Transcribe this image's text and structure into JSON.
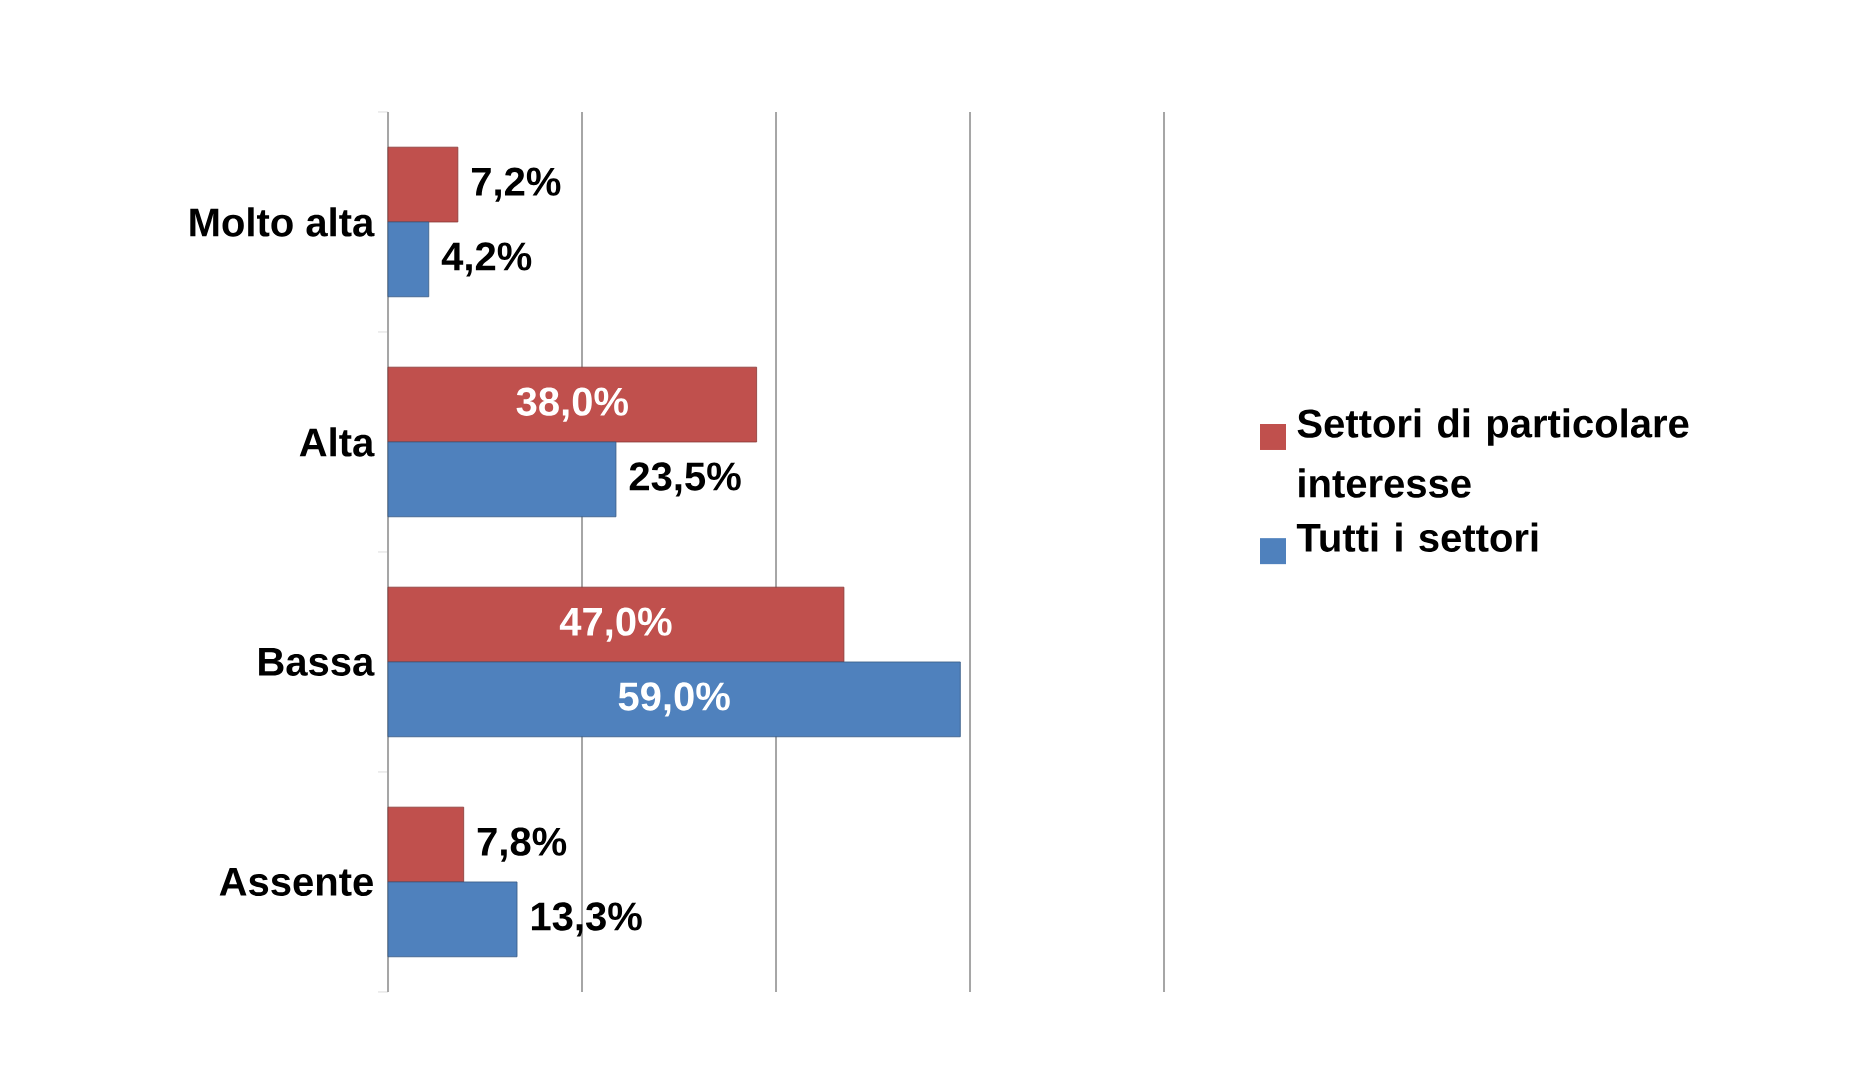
{
  "chart_data": {
    "type": "bar",
    "orientation": "horizontal",
    "categories": [
      "Molto alta",
      "Alta",
      "Bassa",
      "Assente"
    ],
    "series": [
      {
        "name": "Settori di particolare interesse",
        "color": "#c0504d",
        "values": [
          7.2,
          38.0,
          47.0,
          7.8
        ],
        "value_labels": [
          "7,2%",
          "38,0%",
          "47,0%",
          "7,8%"
        ]
      },
      {
        "name": "Tutti i settori",
        "color": "#4f81bd",
        "values": [
          4.2,
          23.5,
          59.0,
          13.3
        ],
        "value_labels": [
          "4,2%",
          "23,5%",
          "59,0%",
          "13,3%"
        ]
      }
    ],
    "xlim": [
      0,
      80
    ],
    "xticks": [
      {
        "value": 0,
        "label": null
      },
      {
        "value": 20,
        "label": null
      },
      {
        "value": 40,
        "label": null
      },
      {
        "value": 60,
        "label": null
      },
      {
        "value": 80,
        "label": null
      }
    ],
    "grid": "x",
    "legend": "right",
    "tick_labels": "y"
  }
}
